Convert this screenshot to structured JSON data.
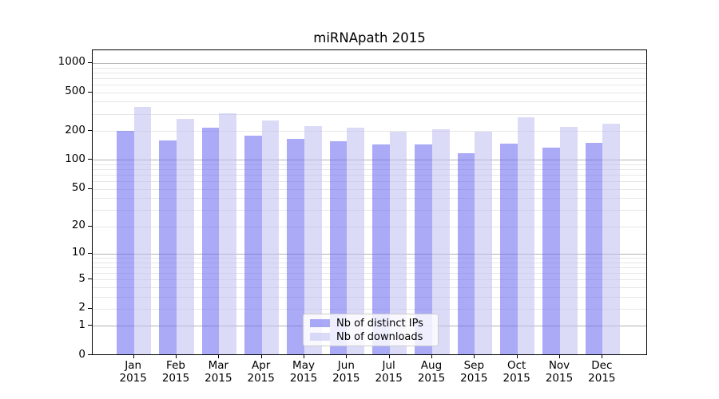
{
  "chart_data": {
    "type": "bar",
    "title": "miRNApath 2015",
    "categories": [
      "Jan 2015",
      "Feb 2015",
      "Mar 2015",
      "Apr 2015",
      "May 2015",
      "Jun 2015",
      "Jul 2015",
      "Aug 2015",
      "Sep 2015",
      "Oct 2015",
      "Nov 2015",
      "Dec 2015"
    ],
    "x_tick_line1": [
      "Jan",
      "Feb",
      "Mar",
      "Apr",
      "May",
      "Jun",
      "Jul",
      "Aug",
      "Sep",
      "Oct",
      "Nov",
      "Dec"
    ],
    "x_tick_line2": "2015",
    "series": [
      {
        "name": "Nb of distinct IPs",
        "color": "rgba(100,100,240,0.55)",
        "values": [
          193,
          152,
          206,
          171,
          158,
          151,
          139,
          139,
          113,
          143,
          129,
          146
        ]
      },
      {
        "name": "Nb of downloads",
        "color": "rgba(190,190,242,0.55)",
        "values": [
          340,
          255,
          293,
          245,
          217,
          208,
          190,
          202,
          188,
          264,
          211,
          230
        ]
      }
    ],
    "xlabel": "",
    "ylabel": "",
    "y_scale": "log10(value+1)",
    "y_ticks": [
      0,
      1,
      2,
      5,
      10,
      20,
      50,
      100,
      200,
      500,
      1000
    ],
    "y_major_gridlines": [
      1,
      10,
      100,
      1000
    ],
    "ylim": [
      0,
      1430
    ],
    "grid": "horizontal major and minor, behind translucent bars",
    "legend_position": "inside, lower center-left"
  },
  "colors": {
    "background": "#ffffff",
    "spine": "#000000",
    "grid_major": "#b3b3b3",
    "grid_minor": "#e7e7e7",
    "legend_border": "#cccccc",
    "legend_background": "rgba(255,255,255,0.8)",
    "text": "#000000"
  }
}
